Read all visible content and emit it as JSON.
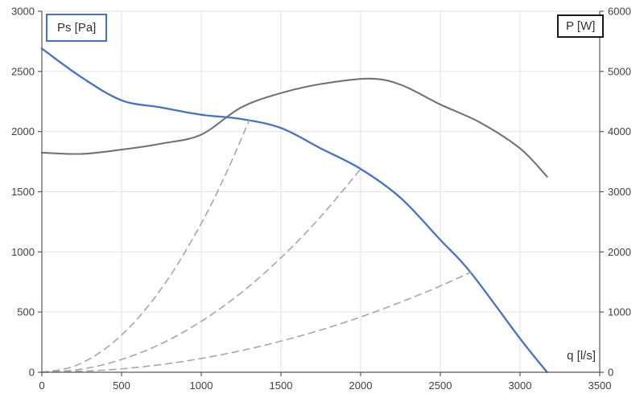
{
  "labels": {
    "left_axis": "Ps [Pa]",
    "right_axis": "P [W]",
    "x_axis": "q [l/s]"
  },
  "colors": {
    "pressure_curve": "#4472C4",
    "power_curve": "#737373",
    "system_curve": "#A6A6A6",
    "gridline": "#E2E2E2",
    "axis_line": "#595959",
    "tick_text": "#404040"
  },
  "chart_data": {
    "type": "line",
    "title": "",
    "xlabel": "q [l/s]",
    "ylabel_left": "Ps [Pa]",
    "ylabel_right": "P [W]",
    "xlim": [
      0,
      3500
    ],
    "ylim_left": [
      0,
      3000
    ],
    "ylim_right": [
      0,
      6000
    ],
    "x_ticks": [
      0,
      500,
      1000,
      1500,
      2000,
      2500,
      3000,
      3500
    ],
    "y_ticks_left": [
      0,
      500,
      1000,
      1500,
      2000,
      2500,
      3000
    ],
    "y_ticks_right": [
      0,
      1000,
      2000,
      3000,
      4000,
      5000,
      6000
    ],
    "grid": true,
    "legend_position": "none",
    "series": [
      {
        "id": "ps-fan-curve",
        "name": "Ps [Pa] fan pressure curve",
        "axis": "left",
        "color": "#4472C4",
        "style": "solid",
        "width": 2.3,
        "points": [
          [
            0,
            2690
          ],
          [
            250,
            2450
          ],
          [
            500,
            2260
          ],
          [
            750,
            2200
          ],
          [
            1000,
            2140
          ],
          [
            1250,
            2105
          ],
          [
            1500,
            2030
          ],
          [
            1750,
            1860
          ],
          [
            2000,
            1690
          ],
          [
            2250,
            1450
          ],
          [
            2500,
            1100
          ],
          [
            2690,
            830
          ],
          [
            3000,
            280
          ],
          [
            3170,
            0
          ]
        ]
      },
      {
        "id": "power-curve",
        "name": "P [W] power curve",
        "axis": "right",
        "color": "#737373",
        "style": "solid",
        "width": 2.1,
        "points": [
          [
            0,
            3650
          ],
          [
            250,
            3630
          ],
          [
            500,
            3700
          ],
          [
            750,
            3800
          ],
          [
            1000,
            3950
          ],
          [
            1250,
            4400
          ],
          [
            1500,
            4640
          ],
          [
            1750,
            4790
          ],
          [
            2050,
            4880
          ],
          [
            2250,
            4780
          ],
          [
            2500,
            4450
          ],
          [
            2750,
            4150
          ],
          [
            3000,
            3720
          ],
          [
            3170,
            3250
          ]
        ]
      },
      {
        "id": "system-curve-1",
        "name": "system curve 1 (steep, ends at q=1300, Ps=2090)",
        "axis": "left",
        "color": "#A6A6A6",
        "style": "dashed",
        "width": 1.6,
        "points": [
          [
            0,
            0
          ],
          [
            200,
            49
          ],
          [
            400,
            198
          ],
          [
            600,
            445
          ],
          [
            800,
            791
          ],
          [
            1000,
            1237
          ],
          [
            1150,
            1636
          ],
          [
            1300,
            2090
          ]
        ]
      },
      {
        "id": "system-curve-2",
        "name": "system curve 2 (medium, ends at q=2000, Ps=1690)",
        "axis": "left",
        "color": "#A6A6A6",
        "style": "dashed",
        "width": 1.6,
        "points": [
          [
            0,
            0
          ],
          [
            250,
            26
          ],
          [
            500,
            106
          ],
          [
            750,
            238
          ],
          [
            1000,
            423
          ],
          [
            1250,
            660
          ],
          [
            1500,
            951
          ],
          [
            1750,
            1294
          ],
          [
            2000,
            1690
          ]
        ]
      },
      {
        "id": "system-curve-3",
        "name": "system curve 3 (flat, ends at q=2690, Ps=830)",
        "axis": "left",
        "color": "#A6A6A6",
        "style": "dashed",
        "width": 1.6,
        "points": [
          [
            0,
            0
          ],
          [
            400,
            18
          ],
          [
            800,
            73
          ],
          [
            1200,
            165
          ],
          [
            1600,
            294
          ],
          [
            2000,
            459
          ],
          [
            2400,
            661
          ],
          [
            2690,
            830
          ]
        ]
      }
    ]
  }
}
